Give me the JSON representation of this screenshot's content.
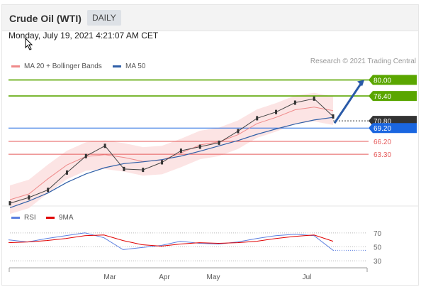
{
  "header": {
    "title": "Crude Oil (WTI)",
    "period": "DAILY"
  },
  "datetime": "Monday, July 19, 2021 4:21:07 AM CET",
  "legend_main": {
    "bb": "MA 20 + Bollinger Bands",
    "ma50": "MA 50"
  },
  "credit": "Research © 2021 Trading Central",
  "legend_rsi": {
    "rsi": "RSI",
    "ma9": "9MA"
  },
  "colors": {
    "bb": "#ef8a8a",
    "ma50": "#2f5fa7",
    "resistance": "#5aa600",
    "support": "#e55a5a",
    "current": "#333333",
    "pivot": "#1a66e0",
    "rsi": "#5b7fe0",
    "rsi_ma": "#e00000"
  },
  "chart_data": [
    {
      "type": "line",
      "x_ticks": [
        "Mar",
        "Apr",
        "May",
        "Jul"
      ],
      "ylim": [
        52,
        82
      ],
      "series": [
        {
          "name": "MA 20 + Bollinger Bands",
          "values": [
            53.1,
            54.4,
            57.8,
            60.9,
            62.8,
            63.2,
            62.6,
            61.7,
            62.0,
            63.6,
            65.4,
            66.1,
            67.7,
            70.2,
            71.6,
            73.3,
            73.9,
            73.1
          ]
        },
        {
          "name": "MA 50",
          "values": [
            51.3,
            52.8,
            54.6,
            57.0,
            58.9,
            60.3,
            61.2,
            61.6,
            62.1,
            62.9,
            64.0,
            65.2,
            66.4,
            67.8,
            69.0,
            70.1,
            71.0,
            71.6
          ]
        },
        {
          "name": "price",
          "values": [
            52.3,
            53.6,
            55.3,
            59.2,
            62.9,
            65.2,
            60.0,
            59.8,
            61.5,
            64.1,
            65.0,
            65.9,
            68.5,
            71.4,
            72.8,
            74.9,
            75.8,
            71.8
          ]
        }
      ],
      "levels": [
        {
          "label": "80.00",
          "value": 80.0,
          "kind": "resistance"
        },
        {
          "label": "76.40",
          "value": 76.4,
          "kind": "resistance"
        },
        {
          "label": "70.80",
          "value": 70.8,
          "kind": "current"
        },
        {
          "label": "69.20",
          "value": 69.2,
          "kind": "pivot"
        },
        {
          "label": "66.20",
          "value": 66.2,
          "kind": "support"
        },
        {
          "label": "63.30",
          "value": 63.3,
          "kind": "support"
        }
      ]
    },
    {
      "type": "line",
      "yticks": [
        70,
        50,
        30
      ],
      "ylim": [
        25,
        80
      ],
      "series": [
        {
          "name": "RSI",
          "values": [
            60,
            57,
            62,
            66,
            70,
            63,
            46,
            49,
            52,
            58,
            55,
            54,
            57,
            62,
            66,
            68,
            66,
            45
          ]
        },
        {
          "name": "9MA",
          "values": [
            56,
            57,
            59,
            62,
            66,
            67,
            59,
            53,
            51,
            54,
            56,
            55,
            56,
            58,
            62,
            65,
            67,
            58
          ]
        }
      ]
    }
  ]
}
